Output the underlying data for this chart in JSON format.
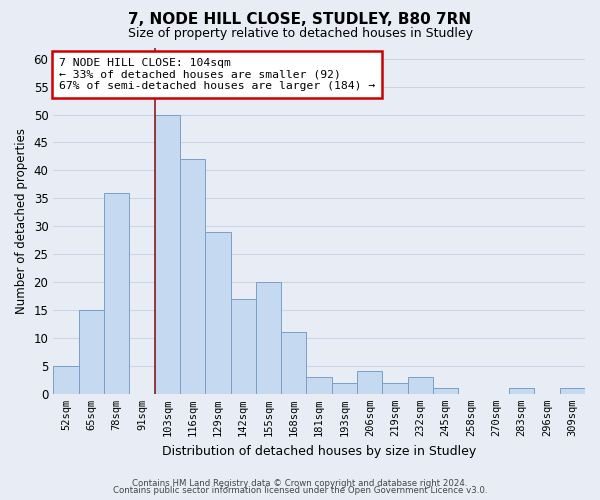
{
  "title": "7, NODE HILL CLOSE, STUDLEY, B80 7RN",
  "subtitle": "Size of property relative to detached houses in Studley",
  "xlabel": "Distribution of detached houses by size in Studley",
  "ylabel": "Number of detached properties",
  "bar_labels": [
    "52sqm",
    "65sqm",
    "78sqm",
    "91sqm",
    "103sqm",
    "116sqm",
    "129sqm",
    "142sqm",
    "155sqm",
    "168sqm",
    "181sqm",
    "193sqm",
    "206sqm",
    "219sqm",
    "232sqm",
    "245sqm",
    "258sqm",
    "270sqm",
    "283sqm",
    "296sqm",
    "309sqm"
  ],
  "bar_values": [
    5,
    15,
    36,
    0,
    50,
    42,
    29,
    17,
    20,
    11,
    3,
    2,
    4,
    2,
    3,
    1,
    0,
    0,
    1,
    0,
    1
  ],
  "bar_color": "#c5d9f1",
  "bar_edge_color": "#7a9fc8",
  "highlight_line_color": "#8b2020",
  "highlight_bar_index": 4,
  "ylim": [
    0,
    62
  ],
  "yticks": [
    0,
    5,
    10,
    15,
    20,
    25,
    30,
    35,
    40,
    45,
    50,
    55,
    60
  ],
  "annotation_line1": "7 NODE HILL CLOSE: 104sqm",
  "annotation_line2": "← 33% of detached houses are smaller (92)",
  "annotation_line3": "67% of semi-detached houses are larger (184) →",
  "annotation_box_color": "#ffffff",
  "annotation_box_edge": "#cc0000",
  "footer_line1": "Contains HM Land Registry data © Crown copyright and database right 2024.",
  "footer_line2": "Contains public sector information licensed under the Open Government Licence v3.0.",
  "grid_color": "#c8d4e8",
  "background_color": "#e8edf5",
  "plot_bg_color": "#e8edf5"
}
